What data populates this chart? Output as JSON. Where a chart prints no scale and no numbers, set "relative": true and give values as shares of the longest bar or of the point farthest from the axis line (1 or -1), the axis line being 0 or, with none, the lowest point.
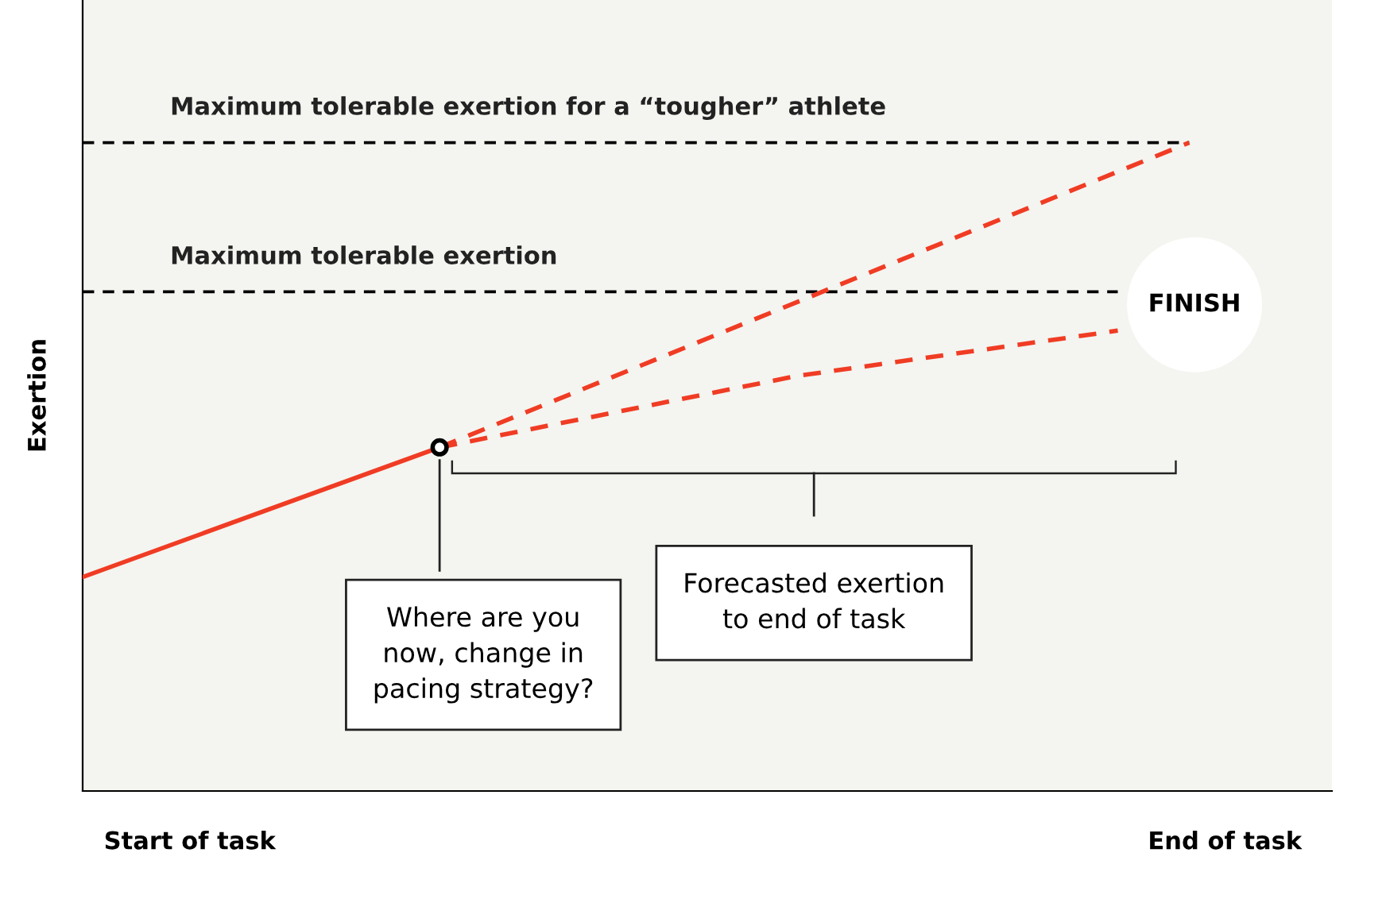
{
  "chart_data": {
    "type": "line",
    "relative": true,
    "ylabel": "Exertion",
    "categories": [
      null,
      null,
      null,
      "Start of task",
      null,
      null,
      null,
      null,
      null,
      null,
      null,
      null,
      null,
      null,
      null,
      null,
      null,
      null,
      null,
      null,
      null,
      null,
      null,
      null,
      null,
      null,
      null,
      null,
      null,
      null,
      null,
      null,
      "End of task",
      null,
      null,
      null
    ],
    "series": [
      {
        "name": "Maximum tolerable exertion for a “tougher” athlete",
        "color": "#000000",
        "line_style": "dashed",
        "values": [
          1.0,
          null,
          null,
          null,
          null,
          null,
          null,
          null,
          null,
          null,
          null,
          null,
          null,
          null,
          null,
          null,
          null,
          null,
          null,
          null,
          null,
          null,
          null,
          null,
          null,
          null,
          null,
          null,
          null,
          null,
          null,
          1.0,
          null,
          null,
          null,
          null
        ]
      },
      {
        "name": "Maximum tolerable exertion",
        "color": "#000000",
        "line_style": "dashed",
        "values": [
          0.77,
          null,
          null,
          null,
          null,
          null,
          null,
          null,
          null,
          null,
          null,
          null,
          null,
          null,
          null,
          null,
          null,
          null,
          null,
          null,
          null,
          null,
          null,
          null,
          null,
          null,
          null,
          null,
          null,
          0.77,
          null,
          null,
          null,
          null,
          null,
          null
        ]
      },
      {
        "color": "#f03c24",
        "line_style": "solid",
        "values": [
          0.33,
          null,
          null,
          null,
          null,
          null,
          null,
          null,
          null,
          null,
          0.53,
          null,
          null,
          null,
          null,
          null,
          null,
          null,
          null,
          null,
          null,
          null,
          null,
          null,
          null,
          null,
          null,
          null,
          null,
          null,
          null,
          null,
          null,
          null,
          null,
          null
        ]
      },
      {
        "color": "#f03c24",
        "line_style": "dashed",
        "values": [
          null,
          null,
          null,
          null,
          null,
          null,
          null,
          null,
          null,
          null,
          0.53,
          null,
          null,
          null,
          null,
          null,
          null,
          null,
          null,
          null,
          null,
          null,
          null,
          null,
          null,
          null,
          null,
          null,
          null,
          null,
          null,
          1.0,
          null,
          null,
          null,
          null
        ]
      },
      {
        "color": "#f03c24",
        "line_style": "dashed",
        "values": [
          null,
          null,
          null,
          null,
          null,
          null,
          null,
          null,
          null,
          null,
          0.53,
          null,
          null,
          null,
          null,
          null,
          null,
          null,
          null,
          null,
          0.64,
          null,
          null,
          null,
          null,
          null,
          null,
          null,
          null,
          0.71,
          null,
          null,
          null,
          null,
          null,
          null
        ]
      },
      {
        "type": "scatter",
        "marker": "circle",
        "color": "#000000",
        "values": [
          null,
          null,
          null,
          null,
          null,
          null,
          null,
          null,
          null,
          null,
          0.53,
          null,
          null,
          null,
          null,
          null,
          null,
          null,
          null,
          null,
          null,
          null,
          null,
          null,
          null,
          null,
          null,
          null,
          null,
          null,
          null,
          null,
          null,
          null,
          null,
          null
        ]
      }
    ],
    "annotations": [
      "FINISH",
      "Where are you\nnow, change in\npacing strategy?",
      "Forecasted exertion\nto end of task"
    ]
  }
}
